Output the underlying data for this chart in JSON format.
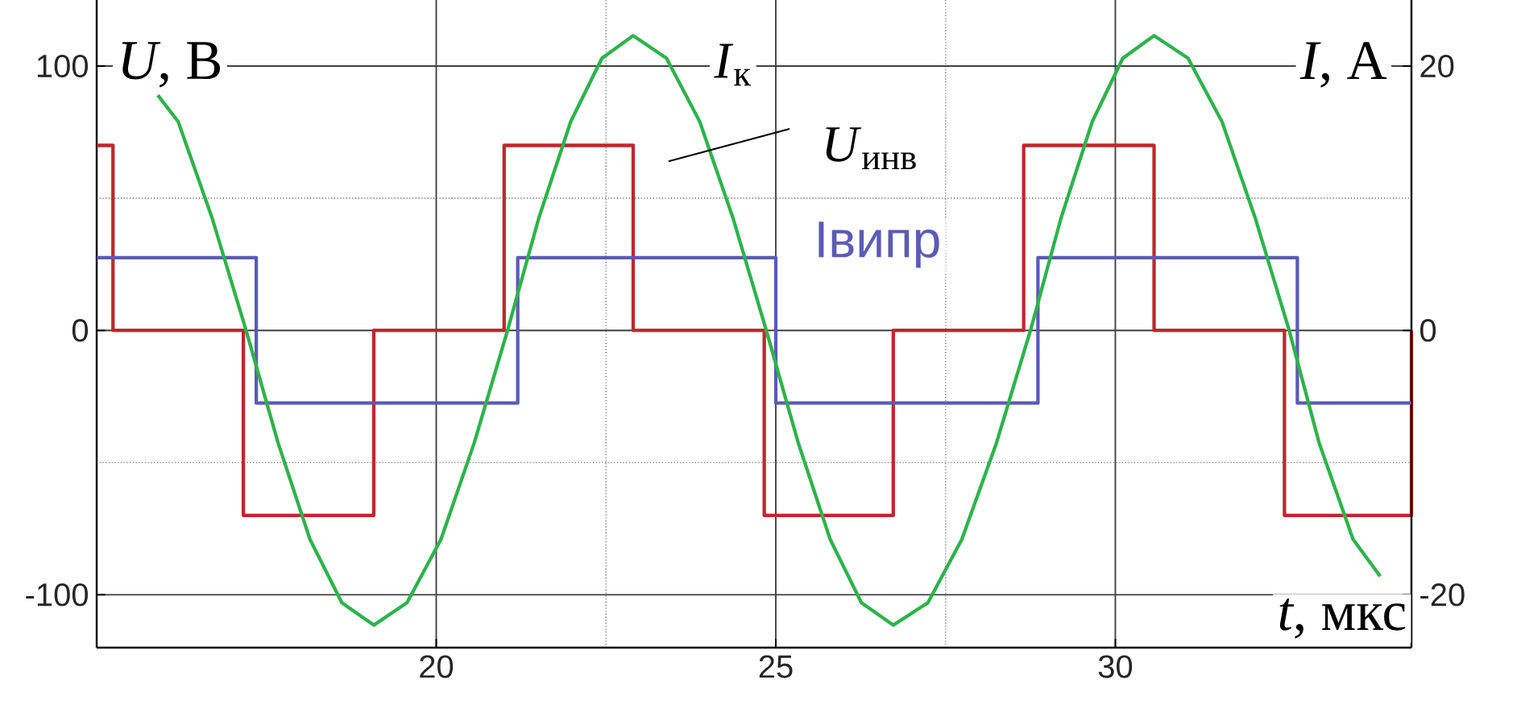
{
  "chart_data": {
    "type": "line",
    "xlabel": "*t*, мкс",
    "ylabel": "*U*, В",
    "y2label": "*I*, А",
    "xlim": [
      15,
      34.36
    ],
    "xticks": [
      20,
      25,
      30
    ],
    "ylim": [
      -120,
      125
    ],
    "yticks": [
      -100,
      0,
      100
    ],
    "y2lim": [
      -24,
      25
    ],
    "y2ticks": [
      -20,
      0,
      20
    ],
    "grid": true,
    "series": [
      {
        "name": "*U*$_{инв}$",
        "type": "step",
        "color": "#c0272d",
        "x": [
          15,
          15.24,
          17.16,
          19.08,
          21.0,
          22.9,
          24.83,
          26.73,
          28.65,
          30.57,
          32.49,
          34.36
        ],
        "values": [
          70,
          0,
          -70,
          0,
          70,
          0,
          -70,
          0,
          70,
          0,
          -70,
          0
        ]
      },
      {
        "name": "Iвипр",
        "type": "step",
        "axis": "y2",
        "color": "#5b5bb5",
        "x": [
          15,
          17.35,
          21.2,
          25.0,
          28.86,
          32.68,
          34.36
        ],
        "values": [
          5.5,
          -5.5,
          5.5,
          -5.5,
          5.5,
          -5.5,
          -5.5
        ]
      },
      {
        "name": "*I*$_{к}$",
        "axis": "y2",
        "color": "#2db34a",
        "x": [
          15.9,
          16.2,
          16.7,
          17.2,
          17.67,
          18.14,
          18.61,
          19.08,
          19.57,
          20.07,
          20.56,
          21.05,
          21.51,
          21.98,
          22.44,
          22.9,
          23.39,
          23.88,
          24.37,
          24.86,
          25.33,
          25.8,
          26.26,
          26.73,
          27.24,
          27.74,
          28.25,
          28.75,
          29.2,
          29.66,
          30.11,
          30.57,
          31.07,
          31.57,
          32.06,
          32.56,
          33.0,
          33.5,
          33.9
        ],
        "values": [
          17.8,
          15.8,
          8.5,
          0,
          -8.5,
          -15.8,
          -20.6,
          -22.3,
          -20.6,
          -15.8,
          -8.5,
          0,
          8.5,
          15.8,
          20.6,
          22.3,
          20.6,
          15.8,
          8.5,
          0,
          -8.5,
          -15.8,
          -20.6,
          -22.3,
          -20.6,
          -15.8,
          -8.5,
          0,
          8.5,
          15.8,
          20.6,
          22.3,
          20.6,
          15.8,
          8.5,
          0,
          -8.5,
          -15.8,
          -18.6
        ]
      }
    ]
  }
}
